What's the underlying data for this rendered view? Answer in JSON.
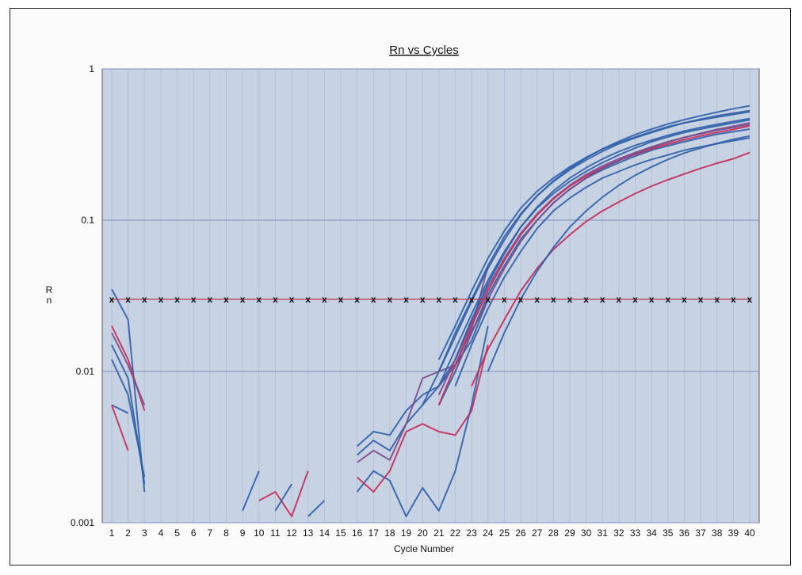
{
  "chart_data": {
    "type": "line",
    "title": "Rn vs Cycles",
    "xlabel": "Cycle Number",
    "ylabel": "Rn",
    "y_scale": "log",
    "ylim": [
      0.001,
      1
    ],
    "xlim": [
      1,
      40
    ],
    "y_ticks": [
      "1",
      "0.1",
      "0.01",
      "0.001"
    ],
    "x_ticks": [
      "1",
      "2",
      "3",
      "4",
      "5",
      "6",
      "7",
      "8",
      "9",
      "10",
      "11",
      "12",
      "13",
      "14",
      "15",
      "16",
      "17",
      "18",
      "19",
      "20",
      "21",
      "22",
      "23",
      "24",
      "25",
      "26",
      "27",
      "28",
      "29",
      "30",
      "31",
      "32",
      "33",
      "34",
      "35",
      "36",
      "37",
      "38",
      "39",
      "40"
    ],
    "threshold": {
      "value": 0.03,
      "marker": "x",
      "color": "#c0304a"
    },
    "grid": {
      "horizontal": true,
      "vertical": true
    },
    "colors": {
      "plot_bg": "#c7d2e3",
      "grid_major": "#7f90b8",
      "grid_minor": "#b4c0d8",
      "series_blue": "#2f5fa8",
      "series_red": "#c42a5a",
      "series_purple": "#7a4a8a"
    },
    "series": [
      {
        "color": "#2f5fa8",
        "x": [
          1,
          2,
          3
        ],
        "y": [
          0.035,
          0.022,
          0.0016
        ]
      },
      {
        "color": "#c42a5a",
        "x": [
          1,
          2,
          3
        ],
        "y": [
          0.02,
          0.012,
          0.0055
        ]
      },
      {
        "color": "#2f5fa8",
        "x": [
          1,
          2,
          3
        ],
        "y": [
          0.015,
          0.009,
          0.0018
        ]
      },
      {
        "color": "#7a4a8a",
        "x": [
          1,
          2,
          3
        ],
        "y": [
          0.018,
          0.011,
          0.006
        ]
      },
      {
        "color": "#2f5fa8",
        "x": [
          1,
          2
        ],
        "y": [
          0.006,
          0.0053
        ]
      },
      {
        "color": "#c42a5a",
        "x": [
          1,
          2
        ],
        "y": [
          0.006,
          0.003
        ]
      },
      {
        "color": "#2f5fa8",
        "x": [
          1,
          2,
          3
        ],
        "y": [
          0.012,
          0.007,
          0.002
        ]
      },
      {
        "color": "#2f5fa8",
        "x": [
          9,
          10
        ],
        "y": [
          0.0012,
          0.0022
        ]
      },
      {
        "color": "#c42a5a",
        "x": [
          10,
          11,
          12,
          13
        ],
        "y": [
          0.0014,
          0.0016,
          0.0011,
          0.0022
        ]
      },
      {
        "color": "#2f5fa8",
        "x": [
          11,
          12
        ],
        "y": [
          0.0012,
          0.0018
        ]
      },
      {
        "color": "#2f5fa8",
        "x": [
          13,
          14
        ],
        "y": [
          0.0011,
          0.0014
        ]
      },
      {
        "color": "#2f5fa8",
        "x": [
          16,
          17,
          18,
          19,
          20,
          21,
          22,
          23
        ],
        "y": [
          0.0028,
          0.0035,
          0.003,
          0.0045,
          0.006,
          0.008,
          0.012,
          0.022
        ]
      },
      {
        "color": "#2f5fa8",
        "x": [
          16,
          17,
          18,
          19,
          20,
          21,
          22,
          23,
          24
        ],
        "y": [
          0.0016,
          0.0022,
          0.0019,
          0.0011,
          0.0017,
          0.0012,
          0.0022,
          0.006,
          0.02
        ]
      },
      {
        "color": "#c42a5a",
        "x": [
          16,
          17,
          18,
          19,
          20,
          21,
          22,
          23,
          24
        ],
        "y": [
          0.002,
          0.0016,
          0.0022,
          0.004,
          0.0045,
          0.004,
          0.0038,
          0.0055,
          0.015
        ]
      },
      {
        "color": "#2f5fa8",
        "x": [
          16,
          17,
          18,
          19,
          20,
          21,
          22,
          23,
          24
        ],
        "y": [
          0.0032,
          0.004,
          0.0038,
          0.0055,
          0.007,
          0.008,
          0.011,
          0.016,
          0.03
        ]
      },
      {
        "color": "#7a4a8a",
        "x": [
          16,
          17,
          18,
          19,
          20,
          21,
          22,
          23,
          24
        ],
        "y": [
          0.0025,
          0.003,
          0.0026,
          0.0045,
          0.009,
          0.01,
          0.011,
          0.019,
          0.05
        ]
      },
      {
        "color": "#2f5fa8",
        "x": [
          21,
          22,
          23,
          24,
          25,
          26,
          27,
          28,
          29,
          30,
          31,
          32,
          33,
          34,
          35,
          36,
          37,
          38,
          39,
          40
        ],
        "y": [
          0.008,
          0.014,
          0.024,
          0.04,
          0.062,
          0.09,
          0.12,
          0.15,
          0.18,
          0.21,
          0.24,
          0.27,
          0.3,
          0.33,
          0.355,
          0.38,
          0.4,
          0.42,
          0.44,
          0.46
        ]
      },
      {
        "color": "#2f5fa8",
        "x": [
          21,
          22,
          23,
          24,
          25,
          26,
          27,
          28,
          29,
          30,
          31,
          32,
          33,
          34,
          35,
          36,
          37,
          38,
          39,
          40
        ],
        "y": [
          0.006,
          0.01,
          0.018,
          0.032,
          0.05,
          0.075,
          0.1,
          0.13,
          0.16,
          0.19,
          0.215,
          0.24,
          0.265,
          0.29,
          0.31,
          0.33,
          0.35,
          0.37,
          0.385,
          0.4
        ]
      },
      {
        "color": "#2f5fa8",
        "x": [
          21,
          22,
          23,
          24,
          25,
          26,
          27,
          28,
          29,
          30,
          31,
          32,
          33,
          34,
          35,
          36,
          37,
          38,
          39,
          40
        ],
        "y": [
          0.01,
          0.018,
          0.03,
          0.05,
          0.078,
          0.11,
          0.145,
          0.18,
          0.215,
          0.25,
          0.285,
          0.32,
          0.35,
          0.38,
          0.41,
          0.44,
          0.46,
          0.48,
          0.5,
          0.52
        ]
      },
      {
        "color": "#2f5fa8",
        "x": [
          22,
          23,
          24,
          25,
          26,
          27,
          28,
          29,
          30,
          31,
          32,
          33,
          34,
          35,
          36,
          37,
          38,
          39,
          40
        ],
        "y": [
          0.008,
          0.015,
          0.026,
          0.042,
          0.062,
          0.088,
          0.115,
          0.14,
          0.165,
          0.19,
          0.21,
          0.232,
          0.252,
          0.27,
          0.29,
          0.305,
          0.32,
          0.335,
          0.35
        ]
      },
      {
        "color": "#7a4a8a",
        "x": [
          21,
          22,
          23,
          24,
          25,
          26,
          27,
          28,
          29,
          30,
          31,
          32,
          33,
          34,
          35,
          36,
          37,
          38,
          39,
          40
        ],
        "y": [
          0.007,
          0.012,
          0.021,
          0.036,
          0.056,
          0.082,
          0.11,
          0.14,
          0.17,
          0.2,
          0.228,
          0.255,
          0.28,
          0.305,
          0.33,
          0.352,
          0.372,
          0.392,
          0.41,
          0.43
        ]
      },
      {
        "color": "#2f5fa8",
        "x": [
          21,
          22,
          23,
          24,
          25,
          26,
          27,
          28,
          29,
          30,
          31,
          32,
          33,
          34,
          35,
          36,
          37,
          38,
          39,
          40
        ],
        "y": [
          0.012,
          0.02,
          0.034,
          0.056,
          0.085,
          0.12,
          0.155,
          0.19,
          0.225,
          0.26,
          0.295,
          0.325,
          0.355,
          0.385,
          0.415,
          0.44,
          0.465,
          0.49,
          0.51,
          0.53
        ]
      },
      {
        "color": "#c42a5a",
        "x": [
          23,
          24,
          25,
          26,
          27,
          28,
          29,
          30,
          31,
          32,
          33,
          34,
          35,
          36,
          37,
          38,
          39,
          40
        ],
        "y": [
          0.008,
          0.014,
          0.022,
          0.034,
          0.048,
          0.064,
          0.08,
          0.098,
          0.115,
          0.132,
          0.15,
          0.168,
          0.185,
          0.202,
          0.22,
          0.238,
          0.255,
          0.28
        ]
      },
      {
        "color": "#c42a5a",
        "x": [
          21,
          22,
          23,
          24,
          25,
          26,
          27,
          28,
          29,
          30,
          31,
          32,
          33,
          34,
          35,
          36,
          37,
          38,
          39,
          40
        ],
        "y": [
          0.006,
          0.011,
          0.02,
          0.034,
          0.054,
          0.08,
          0.108,
          0.138,
          0.168,
          0.196,
          0.222,
          0.248,
          0.272,
          0.296,
          0.318,
          0.34,
          0.36,
          0.38,
          0.398,
          0.42
        ]
      },
      {
        "color": "#2f5fa8",
        "x": [
          24,
          25,
          26,
          27,
          28,
          29,
          30,
          31,
          32,
          33,
          34,
          35,
          36,
          37,
          38,
          39,
          40
        ],
        "y": [
          0.01,
          0.018,
          0.03,
          0.046,
          0.066,
          0.09,
          0.115,
          0.142,
          0.17,
          0.198,
          0.225,
          0.252,
          0.278,
          0.3,
          0.322,
          0.342,
          0.36
        ]
      },
      {
        "color": "#2f5fa8",
        "x": [
          20,
          21,
          22,
          23,
          24,
          25,
          26,
          27,
          28,
          29,
          30,
          31,
          32,
          33,
          34,
          35,
          36,
          37,
          38,
          39,
          40
        ],
        "y": [
          0.006,
          0.01,
          0.017,
          0.029,
          0.048,
          0.074,
          0.108,
          0.145,
          0.182,
          0.22,
          0.258,
          0.296,
          0.332,
          0.368,
          0.4,
          0.432,
          0.462,
          0.49,
          0.518,
          0.545,
          0.57
        ]
      },
      {
        "color": "#7a4a8a",
        "x": [
          22,
          23,
          24,
          25,
          26,
          27,
          28,
          29,
          30,
          31,
          32,
          33,
          34,
          35,
          36,
          37,
          38,
          39,
          40
        ],
        "y": [
          0.01,
          0.018,
          0.03,
          0.048,
          0.072,
          0.1,
          0.13,
          0.16,
          0.19,
          0.22,
          0.248,
          0.275,
          0.302,
          0.328,
          0.352,
          0.375,
          0.398,
          0.418,
          0.44
        ]
      },
      {
        "color": "#2f5fa8",
        "x": [
          22,
          23,
          24,
          25,
          26,
          27,
          28,
          29,
          30,
          31,
          32,
          33,
          34,
          35,
          36,
          37,
          38,
          39,
          40
        ],
        "y": [
          0.012,
          0.022,
          0.038,
          0.06,
          0.09,
          0.122,
          0.156,
          0.19,
          0.222,
          0.254,
          0.284,
          0.312,
          0.338,
          0.364,
          0.388,
          0.41,
          0.43,
          0.45,
          0.47
        ]
      }
    ]
  }
}
